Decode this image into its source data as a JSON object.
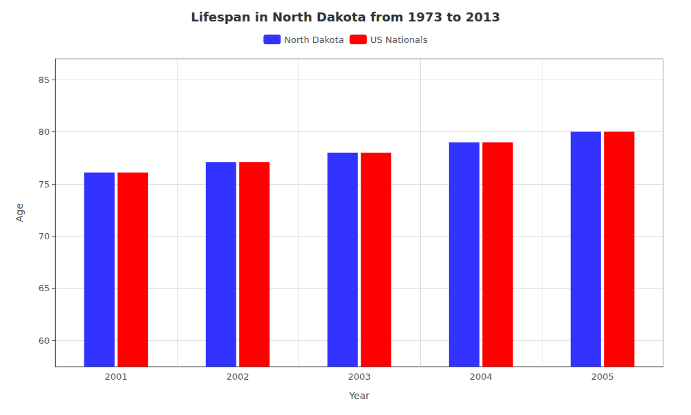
{
  "chart_data": {
    "type": "bar",
    "title": "Lifespan in North Dakota from 1973 to 2013",
    "xlabel": "Year",
    "ylabel": "Age",
    "categories": [
      "2001",
      "2002",
      "2003",
      "2004",
      "2005"
    ],
    "series": [
      {
        "name": "North Dakota",
        "color": "#3333ff",
        "values": [
          76.1,
          77.1,
          78.0,
          79.0,
          80.0
        ]
      },
      {
        "name": "US Nationals",
        "color": "#ff0000",
        "values": [
          76.1,
          77.1,
          78.0,
          79.0,
          80.0
        ]
      }
    ],
    "ylim": [
      57.5,
      87
    ],
    "yticks": [
      60,
      65,
      70,
      75,
      80,
      85
    ],
    "grid": true,
    "legend": "upper center"
  }
}
